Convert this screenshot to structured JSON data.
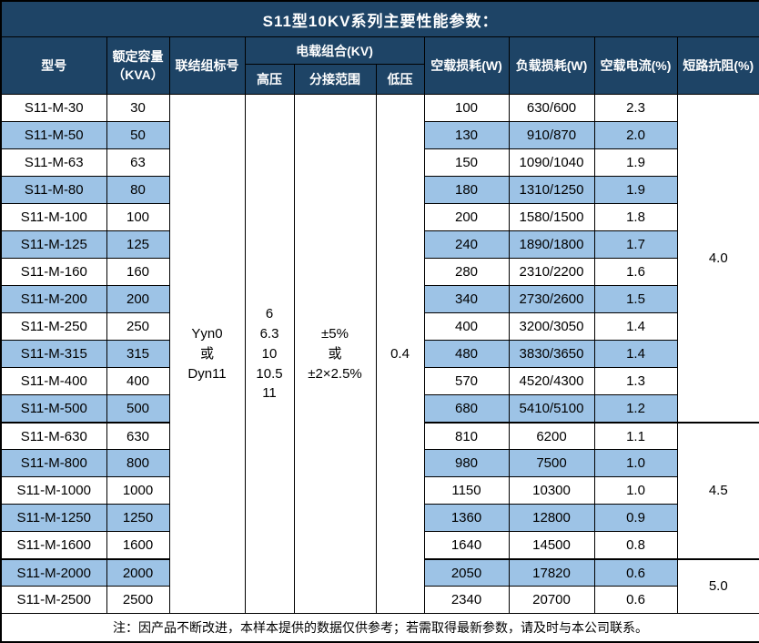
{
  "title": "S11型10KV系列主要性能参数：",
  "note": "注：因产品不断改进，本样本提供的数据仅供参考；若需取得最新参数，请及时与本公司联系。",
  "colors": {
    "header_bg": "#1E4466",
    "header_text": "#FFFFFF",
    "alt_row_bg": "#9DC3E6",
    "border": "#000000"
  },
  "headers": {
    "model": "型号",
    "capacity_line1": "额定容量",
    "capacity_line2": "（KVA）",
    "connection": "联结组标号",
    "load_combo": "电载组合(KV)",
    "hv": "高压",
    "tap_range": "分接范围",
    "lv": "低压",
    "no_load_loss": "空载损耗(W)",
    "load_loss": "负载损耗(W)",
    "no_load_current": "空载电流(%)",
    "impedance": "短路抗阻(%)"
  },
  "merged": {
    "connection_lines": [
      "Yyn0",
      "或",
      "Dyn11"
    ],
    "hv_lines": [
      "6",
      "6.3",
      "10",
      "10.5",
      "11"
    ],
    "tap_lines": [
      "±5%",
      "或",
      "±2×2.5%"
    ],
    "lv": "0.4"
  },
  "impedance_groups": [
    {
      "start": 0,
      "span": 12,
      "value": "4.0"
    },
    {
      "start": 12,
      "span": 5,
      "value": "4.5"
    },
    {
      "start": 17,
      "span": 2,
      "value": "5.0"
    }
  ],
  "rows": [
    {
      "model": "S11-M-30",
      "capacity": "30",
      "no_load_loss": "100",
      "load_loss": "630/600",
      "current": "2.3"
    },
    {
      "model": "S11-M-50",
      "capacity": "50",
      "no_load_loss": "130",
      "load_loss": "910/870",
      "current": "2.0"
    },
    {
      "model": "S11-M-63",
      "capacity": "63",
      "no_load_loss": "150",
      "load_loss": "1090/1040",
      "current": "1.9"
    },
    {
      "model": "S11-M-80",
      "capacity": "80",
      "no_load_loss": "180",
      "load_loss": "1310/1250",
      "current": "1.9"
    },
    {
      "model": "S11-M-100",
      "capacity": "100",
      "no_load_loss": "200",
      "load_loss": "1580/1500",
      "current": "1.8"
    },
    {
      "model": "S11-M-125",
      "capacity": "125",
      "no_load_loss": "240",
      "load_loss": "1890/1800",
      "current": "1.7"
    },
    {
      "model": "S11-M-160",
      "capacity": "160",
      "no_load_loss": "280",
      "load_loss": "2310/2200",
      "current": "1.6"
    },
    {
      "model": "S11-M-200",
      "capacity": "200",
      "no_load_loss": "340",
      "load_loss": "2730/2600",
      "current": "1.5"
    },
    {
      "model": "S11-M-250",
      "capacity": "250",
      "no_load_loss": "400",
      "load_loss": "3200/3050",
      "current": "1.4"
    },
    {
      "model": "S11-M-315",
      "capacity": "315",
      "no_load_loss": "480",
      "load_loss": "3830/3650",
      "current": "1.4"
    },
    {
      "model": "S11-M-400",
      "capacity": "400",
      "no_load_loss": "570",
      "load_loss": "4520/4300",
      "current": "1.3"
    },
    {
      "model": "S11-M-500",
      "capacity": "500",
      "no_load_loss": "680",
      "load_loss": "5410/5100",
      "current": "1.2"
    },
    {
      "model": "S11-M-630",
      "capacity": "630",
      "no_load_loss": "810",
      "load_loss": "6200",
      "current": "1.1"
    },
    {
      "model": "S11-M-800",
      "capacity": "800",
      "no_load_loss": "980",
      "load_loss": "7500",
      "current": "1.0"
    },
    {
      "model": "S11-M-1000",
      "capacity": "1000",
      "no_load_loss": "1150",
      "load_loss": "10300",
      "current": "1.0"
    },
    {
      "model": "S11-M-1250",
      "capacity": "1250",
      "no_load_loss": "1360",
      "load_loss": "12800",
      "current": "0.9"
    },
    {
      "model": "S11-M-1600",
      "capacity": "1600",
      "no_load_loss": "1640",
      "load_loss": "14500",
      "current": "0.8"
    },
    {
      "model": "S11-M-2000",
      "capacity": "2000",
      "no_load_loss": "2050",
      "load_loss": "17820",
      "current": "0.6"
    },
    {
      "model": "S11-M-2500",
      "capacity": "2500",
      "no_load_loss": "2340",
      "load_loss": "20700",
      "current": "0.6"
    }
  ]
}
